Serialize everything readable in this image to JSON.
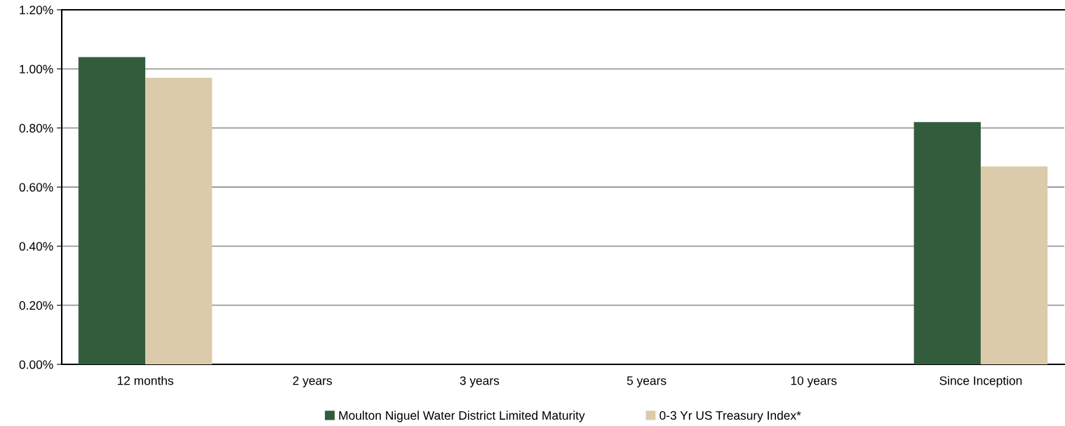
{
  "chart_data": {
    "type": "bar",
    "categories": [
      "12 months",
      "2 years",
      "3 years",
      "5 years",
      "10 years",
      "Since Inception"
    ],
    "series": [
      {
        "name": "Moulton Niguel Water District Limited Maturity",
        "color": "#335c3c",
        "values": [
          1.04,
          null,
          null,
          null,
          null,
          0.82
        ]
      },
      {
        "name": "0-3 Yr US Treasury Index*",
        "color": "#dccbaa",
        "values": [
          0.97,
          null,
          null,
          null,
          null,
          0.67
        ]
      }
    ],
    "ylim": [
      0,
      1.2
    ],
    "yticks": [
      {
        "value": 0,
        "label": "0.00%"
      },
      {
        "value": 0.2,
        "label": "0.20%"
      },
      {
        "value": 0.4,
        "label": "0.40%"
      },
      {
        "value": 0.6,
        "label": "0.60%"
      },
      {
        "value": 0.8,
        "label": "0.80%"
      },
      {
        "value": 1.0,
        "label": "1.00%"
      },
      {
        "value": 1.2,
        "label": "1.20%"
      }
    ],
    "grid": "y",
    "legend": "bottom"
  }
}
